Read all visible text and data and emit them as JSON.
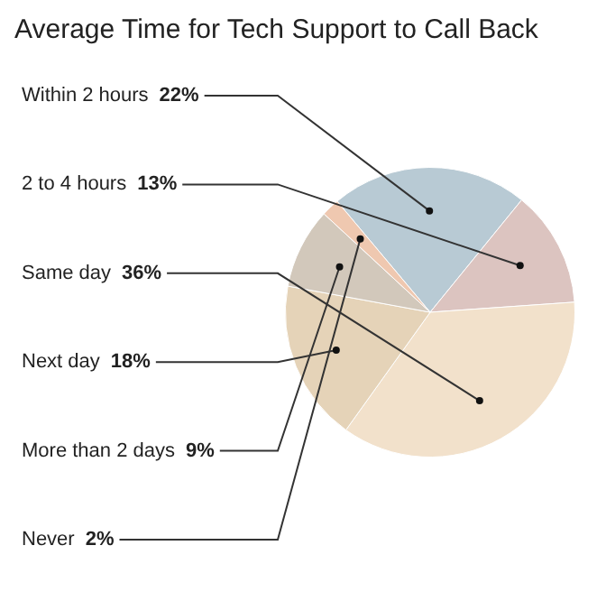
{
  "chart_data": {
    "type": "pie",
    "title": "Average Time for Tech Support to Call Back",
    "categories": [
      "Within 2 hours",
      "2 to 4 hours",
      "Same day",
      "Next day",
      "More than 2 days",
      "Never"
    ],
    "values": [
      22,
      13,
      36,
      18,
      9,
      2
    ],
    "value_labels": [
      "22%",
      "13%",
      "36%",
      "18%",
      "9%",
      "2%"
    ],
    "colors": [
      "#b8cad4",
      "#dcc4c0",
      "#f2e1cb",
      "#e5d3b8",
      "#d2c8bb",
      "#efc8b0"
    ],
    "legend": false
  }
}
